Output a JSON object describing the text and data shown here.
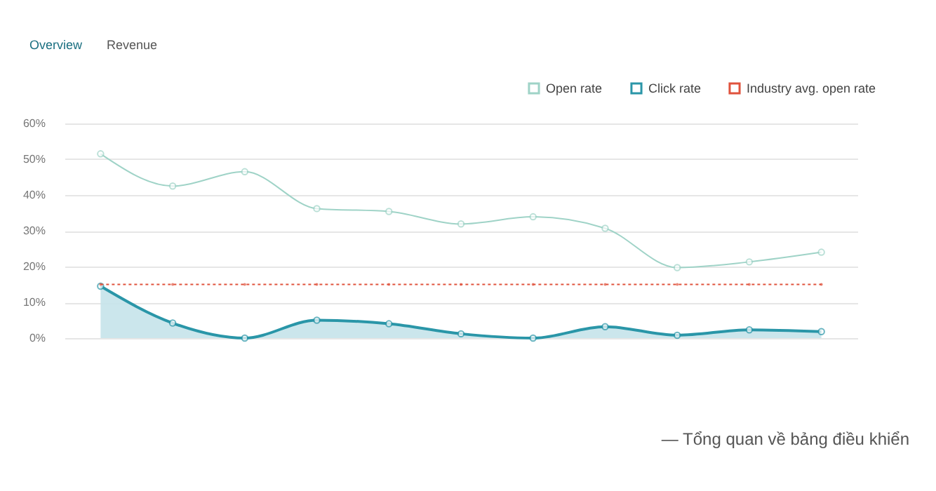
{
  "chart_data": {
    "type": "line",
    "categories": [
      null,
      null,
      null,
      null,
      null,
      null,
      null,
      null,
      null,
      null,
      null
    ],
    "series": [
      {
        "name": "Open rate",
        "color": "#9fd3c7",
        "type": "line",
        "marker": "circle",
        "values": [
          51.5,
          42.5,
          46.5,
          36.2,
          35.4,
          31.9,
          33.9,
          30.7,
          19.7,
          21.3,
          24.0
        ]
      },
      {
        "name": "Click rate",
        "color": "#2a96a8",
        "type": "area",
        "marker": "circle",
        "values": [
          14.5,
          4.2,
          0,
          5,
          4,
          1.2,
          0,
          3.2,
          0.8,
          2.3,
          1.8
        ]
      },
      {
        "name": "Industry avg. open rate",
        "color": "#e0533d",
        "type": "line",
        "line_style": "dotted",
        "values": [
          15,
          15,
          15,
          15,
          15,
          15,
          15,
          15,
          15,
          15,
          15
        ]
      }
    ],
    "ylim": [
      0,
      60
    ],
    "yticks": [
      {
        "value": 0,
        "label": "0%"
      },
      {
        "value": 10,
        "label": "10%"
      },
      {
        "value": 20,
        "label": "20%"
      },
      {
        "value": 30,
        "label": "30%"
      },
      {
        "value": 40,
        "label": "40%"
      },
      {
        "value": 50,
        "label": "50%"
      },
      {
        "value": 60,
        "label": "60%"
      }
    ],
    "grid": "y",
    "legend": "top right",
    "tick_labels": "y",
    "annotations": [
      "Overview",
      "Revenue",
      "— Tổng quan về bảng điều khiển"
    ]
  }
}
